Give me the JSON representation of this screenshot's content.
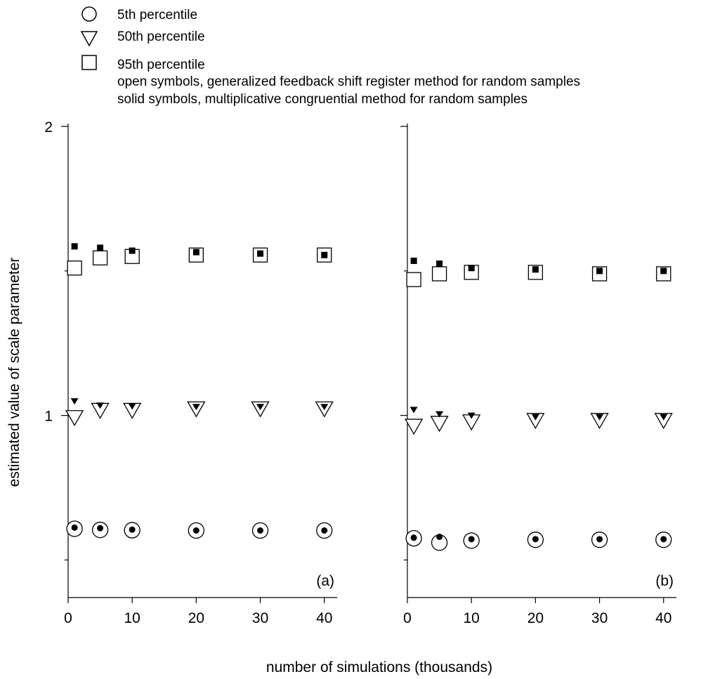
{
  "legend": {
    "entries": [
      {
        "symbol": "circle",
        "label": "5th  percentile"
      },
      {
        "symbol": "triangle-down",
        "label": "50th percentile"
      },
      {
        "symbol": "square",
        "label": "95th percentile"
      }
    ],
    "notes": [
      "open symbols, generalized feedback shift register method for random samples",
      "solid symbols, multiplicative congruential method for random samples"
    ]
  },
  "axes": {
    "xlabel": "number of simulations (thousands)",
    "ylabel": "estimated value of scale parameter"
  },
  "chart_data": [
    {
      "type": "scatter",
      "panel_label": "(a)",
      "xlim": [
        0,
        42
      ],
      "ylim": [
        0.37,
        2.0
      ],
      "x_ticks": [
        0,
        10,
        20,
        30,
        40
      ],
      "y_ticks": [
        1,
        2
      ],
      "y_minor_ticks": [
        0.5,
        1.5
      ],
      "grid": false,
      "series": [
        {
          "name": "5th  percentile",
          "method": "open",
          "marker": "circle",
          "x": [
            1,
            5,
            10,
            20,
            30,
            40
          ],
          "y": [
            0.608,
            0.604,
            0.603,
            0.602,
            0.602,
            0.602
          ]
        },
        {
          "name": "5th  percentile",
          "method": "solid",
          "marker": "circle",
          "x": [
            1,
            5,
            10,
            20,
            30,
            40
          ],
          "y": [
            0.612,
            0.61,
            0.605,
            0.602,
            0.602,
            0.602
          ]
        },
        {
          "name": "50th percentile",
          "method": "open",
          "marker": "triangle-down",
          "x": [
            1,
            5,
            10,
            20,
            30,
            40
          ],
          "y": [
            0.995,
            1.02,
            1.02,
            1.025,
            1.025,
            1.025
          ]
        },
        {
          "name": "50th percentile",
          "method": "solid",
          "marker": "triangle-down",
          "x": [
            1,
            5,
            10,
            20,
            30,
            40
          ],
          "y": [
            1.05,
            1.035,
            1.032,
            1.03,
            1.03,
            1.03
          ]
        },
        {
          "name": "95th percentile",
          "method": "open",
          "marker": "square",
          "x": [
            1,
            5,
            10,
            20,
            30,
            40
          ],
          "y": [
            1.51,
            1.545,
            1.55,
            1.555,
            1.555,
            1.555
          ]
        },
        {
          "name": "95th percentile",
          "method": "solid",
          "marker": "square",
          "x": [
            1,
            5,
            10,
            20,
            30,
            40
          ],
          "y": [
            1.585,
            1.58,
            1.57,
            1.565,
            1.56,
            1.555
          ]
        }
      ]
    },
    {
      "type": "scatter",
      "panel_label": "(b)",
      "xlim": [
        0,
        42
      ],
      "ylim": [
        0.37,
        2.0
      ],
      "x_ticks": [
        0,
        10,
        20,
        30,
        40
      ],
      "y_ticks": [
        1,
        2
      ],
      "y_minor_ticks": [
        0.5,
        1.5
      ],
      "grid": false,
      "series": [
        {
          "name": "5th  percentile",
          "method": "open",
          "marker": "circle",
          "x": [
            1,
            5,
            10,
            20,
            30,
            40
          ],
          "y": [
            0.575,
            0.56,
            0.567,
            0.57,
            0.57,
            0.57
          ]
        },
        {
          "name": "5th  percentile",
          "method": "solid",
          "marker": "circle",
          "x": [
            1,
            5,
            10,
            20,
            30,
            40
          ],
          "y": [
            0.577,
            0.58,
            0.572,
            0.572,
            0.572,
            0.572
          ]
        },
        {
          "name": "50th percentile",
          "method": "open",
          "marker": "triangle-down",
          "x": [
            1,
            5,
            10,
            20,
            30,
            40
          ],
          "y": [
            0.965,
            0.975,
            0.98,
            0.985,
            0.985,
            0.985
          ]
        },
        {
          "name": "50th percentile",
          "method": "solid",
          "marker": "triangle-down",
          "x": [
            1,
            5,
            10,
            20,
            30,
            40
          ],
          "y": [
            1.02,
            1.005,
            1.0,
            0.995,
            0.995,
            0.995
          ]
        },
        {
          "name": "95th percentile",
          "method": "open",
          "marker": "square",
          "x": [
            1,
            5,
            10,
            20,
            30,
            40
          ],
          "y": [
            1.47,
            1.49,
            1.495,
            1.495,
            1.49,
            1.49
          ]
        },
        {
          "name": "95th percentile",
          "method": "solid",
          "marker": "square",
          "x": [
            1,
            5,
            10,
            20,
            30,
            40
          ],
          "y": [
            1.535,
            1.525,
            1.51,
            1.505,
            1.5,
            1.5
          ]
        }
      ]
    }
  ]
}
